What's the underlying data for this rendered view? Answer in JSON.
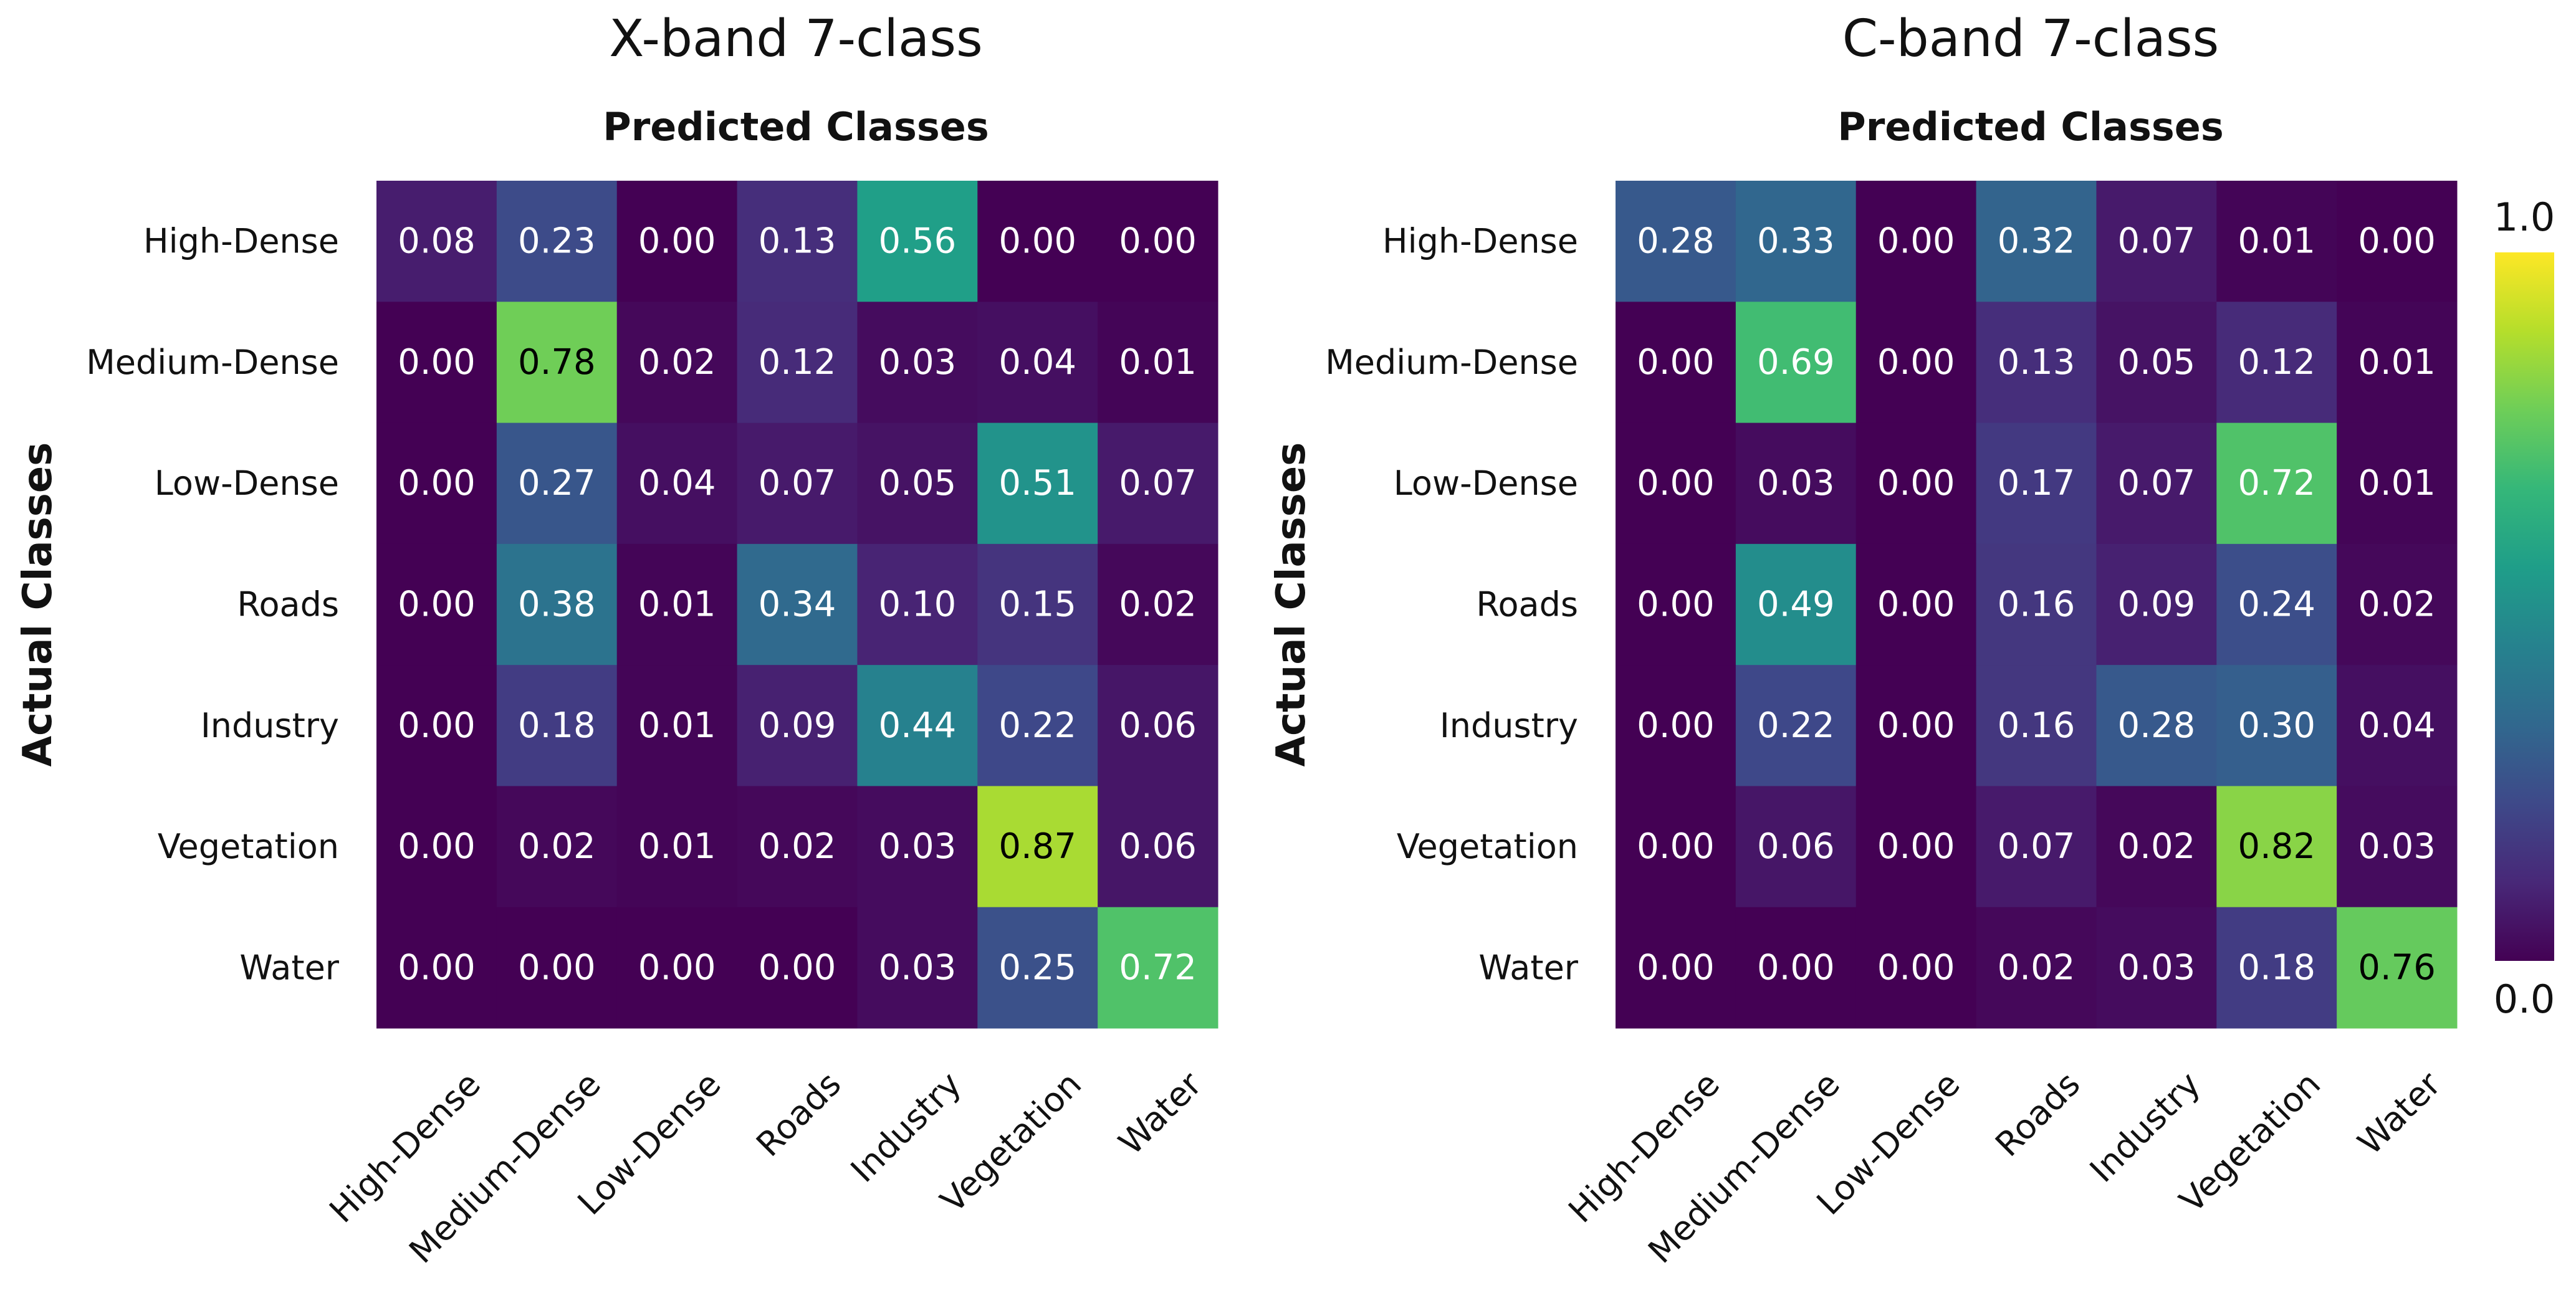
{
  "chart_data": [
    {
      "type": "heatmap",
      "title": "X-band 7-class",
      "xlabel": "Predicted Classes",
      "ylabel": "Actual Classes",
      "x_categories": [
        "High-Dense",
        "Medium-Dense",
        "Low-Dense",
        "Roads",
        "Industry",
        "Vegetation",
        "Water"
      ],
      "y_categories": [
        "High-Dense",
        "Medium-Dense",
        "Low-Dense",
        "Roads",
        "Industry",
        "Vegetation",
        "Water"
      ],
      "values": [
        [
          0.08,
          0.23,
          0.0,
          0.13,
          0.56,
          0.0,
          0.0
        ],
        [
          0.0,
          0.78,
          0.02,
          0.12,
          0.03,
          0.04,
          0.01
        ],
        [
          0.0,
          0.27,
          0.04,
          0.07,
          0.05,
          0.51,
          0.07
        ],
        [
          0.0,
          0.38,
          0.01,
          0.34,
          0.1,
          0.15,
          0.02
        ],
        [
          0.0,
          0.18,
          0.01,
          0.09,
          0.44,
          0.22,
          0.06
        ],
        [
          0.0,
          0.02,
          0.01,
          0.02,
          0.03,
          0.87,
          0.06
        ],
        [
          0.0,
          0.0,
          0.0,
          0.0,
          0.03,
          0.25,
          0.72
        ]
      ],
      "value_range": [
        0.0,
        1.0
      ],
      "colormap": "viridis"
    },
    {
      "type": "heatmap",
      "title": "C-band 7-class",
      "xlabel": "Predicted Classes",
      "ylabel": "Actual Classes",
      "x_categories": [
        "High-Dense",
        "Medium-Dense",
        "Low-Dense",
        "Roads",
        "Industry",
        "Vegetation",
        "Water"
      ],
      "y_categories": [
        "High-Dense",
        "Medium-Dense",
        "Low-Dense",
        "Roads",
        "Industry",
        "Vegetation",
        "Water"
      ],
      "values": [
        [
          0.28,
          0.33,
          0.0,
          0.32,
          0.07,
          0.01,
          0.0
        ],
        [
          0.0,
          0.69,
          0.0,
          0.13,
          0.05,
          0.12,
          0.01
        ],
        [
          0.0,
          0.03,
          0.0,
          0.17,
          0.07,
          0.72,
          0.01
        ],
        [
          0.0,
          0.49,
          0.0,
          0.16,
          0.09,
          0.24,
          0.02
        ],
        [
          0.0,
          0.22,
          0.0,
          0.16,
          0.28,
          0.3,
          0.04
        ],
        [
          0.0,
          0.06,
          0.0,
          0.07,
          0.02,
          0.82,
          0.03
        ],
        [
          0.0,
          0.0,
          0.0,
          0.02,
          0.03,
          0.18,
          0.76
        ]
      ],
      "value_range": [
        0.0,
        1.0
      ],
      "colormap": "viridis"
    }
  ],
  "colorbar": {
    "max_label": "1.0",
    "min_label": "0.0",
    "colormap": "viridis",
    "stops": [
      "#440154",
      "#482878",
      "#3e4989",
      "#31688e",
      "#26828e",
      "#1f9e89",
      "#35b779",
      "#6ece58",
      "#b5de2b",
      "#fde725"
    ]
  },
  "colors": {
    "background": "#ffffff",
    "dark_text": "#000000",
    "light_text": "#ffffff"
  }
}
